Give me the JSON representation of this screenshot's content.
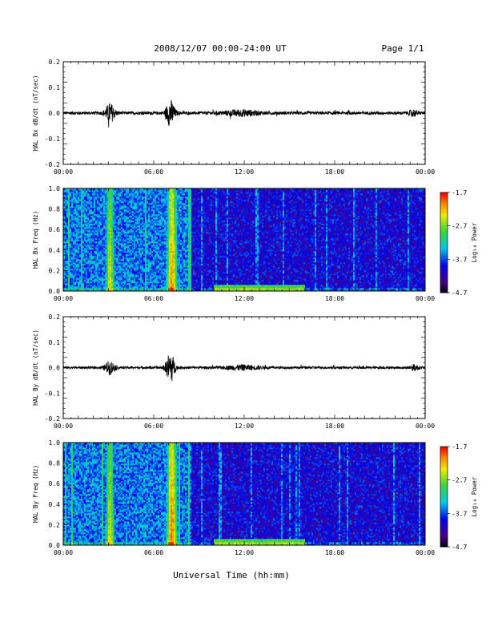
{
  "header": {
    "title": "2008/12/07  00:00-24:00 UT",
    "page": "Page 1/1"
  },
  "footer": {
    "xlabel": "Universal Time (hh:mm)"
  },
  "chart_data": [
    {
      "type": "line",
      "ylabel": "HAL Bx dB/dt (nT/sec)",
      "xlim_hours": [
        0,
        24
      ],
      "ylim": [
        -0.2,
        0.2
      ],
      "y_ticks": [
        "0.2",
        "0.1",
        "0.0",
        "-0.1",
        "-0.2"
      ],
      "x_ticks": [
        "00:00",
        "06:00",
        "12:00",
        "18:00",
        "00:00"
      ],
      "baseline_amplitude": 0.006,
      "bursts": [
        {
          "center_hour": 3.1,
          "width_hour": 0.45,
          "amplitude": 0.035
        },
        {
          "center_hour": 7.1,
          "width_hour": 0.4,
          "amplitude": 0.05
        },
        {
          "center_hour": 11.8,
          "width_hour": 1.6,
          "amplitude": 0.01
        },
        {
          "center_hour": 23.2,
          "width_hour": 0.4,
          "amplitude": 0.01
        }
      ]
    },
    {
      "type": "heatmap",
      "ylabel": "HAL Bx Freq (Hz)",
      "xlim_hours": [
        0,
        24
      ],
      "ylim": [
        0.0,
        1.0
      ],
      "y_ticks": [
        "1.0",
        "0.8",
        "0.6",
        "0.4",
        "0.2",
        "0.0"
      ],
      "x_ticks": [
        "00:00",
        "06:00",
        "12:00",
        "18:00",
        "00:00"
      ],
      "colorbar": {
        "label": "Log₁₀ Power",
        "ticks": [
          "-1.7",
          "-2.7",
          "-3.7",
          "-4.7"
        ],
        "range": [
          -4.7,
          -1.7
        ]
      },
      "bands": [
        {
          "center_hour": 3.1,
          "width_hour": 0.55,
          "peak": -2.4
        },
        {
          "center_hour": 7.2,
          "width_hour": 0.65,
          "peak": -2.0
        }
      ],
      "quiet_span_hours": [
        8.5,
        24
      ],
      "low_freq_enhancement_hours": [
        10,
        16
      ]
    },
    {
      "type": "line",
      "ylabel": "HAL By dB/dt (nT/sec)",
      "xlim_hours": [
        0,
        24
      ],
      "ylim": [
        -0.2,
        0.2
      ],
      "y_ticks": [
        "0.2",
        "0.1",
        "0.0",
        "-0.1",
        "-0.2"
      ],
      "x_ticks": [
        "00:00",
        "06:00",
        "12:00",
        "18:00",
        "00:00"
      ],
      "baseline_amplitude": 0.005,
      "bursts": [
        {
          "center_hour": 3.1,
          "width_hour": 0.45,
          "amplitude": 0.025
        },
        {
          "center_hour": 7.1,
          "width_hour": 0.4,
          "amplitude": 0.06
        },
        {
          "center_hour": 11.9,
          "width_hour": 1.6,
          "amplitude": 0.008
        },
        {
          "center_hour": 23.3,
          "width_hour": 0.4,
          "amplitude": 0.01
        }
      ]
    },
    {
      "type": "heatmap",
      "ylabel": "HAL By Freq (Hz)",
      "xlim_hours": [
        0,
        24
      ],
      "ylim": [
        0.0,
        1.0
      ],
      "y_ticks": [
        "1.0",
        "0.8",
        "0.6",
        "0.4",
        "0.2",
        "0.0"
      ],
      "x_ticks": [
        "00:00",
        "06:00",
        "12:00",
        "18:00",
        "00:00"
      ],
      "colorbar": {
        "label": "Log₁₀ Power",
        "ticks": [
          "-1.7",
          "-2.7",
          "-3.7",
          "-4.7"
        ],
        "range": [
          -4.7,
          -1.7
        ]
      },
      "bands": [
        {
          "center_hour": 3.1,
          "width_hour": 0.55,
          "peak": -2.4
        },
        {
          "center_hour": 7.2,
          "width_hour": 0.65,
          "peak": -1.9
        }
      ],
      "quiet_span_hours": [
        8.5,
        24
      ],
      "low_freq_enhancement_hours": [
        10,
        16
      ]
    }
  ]
}
